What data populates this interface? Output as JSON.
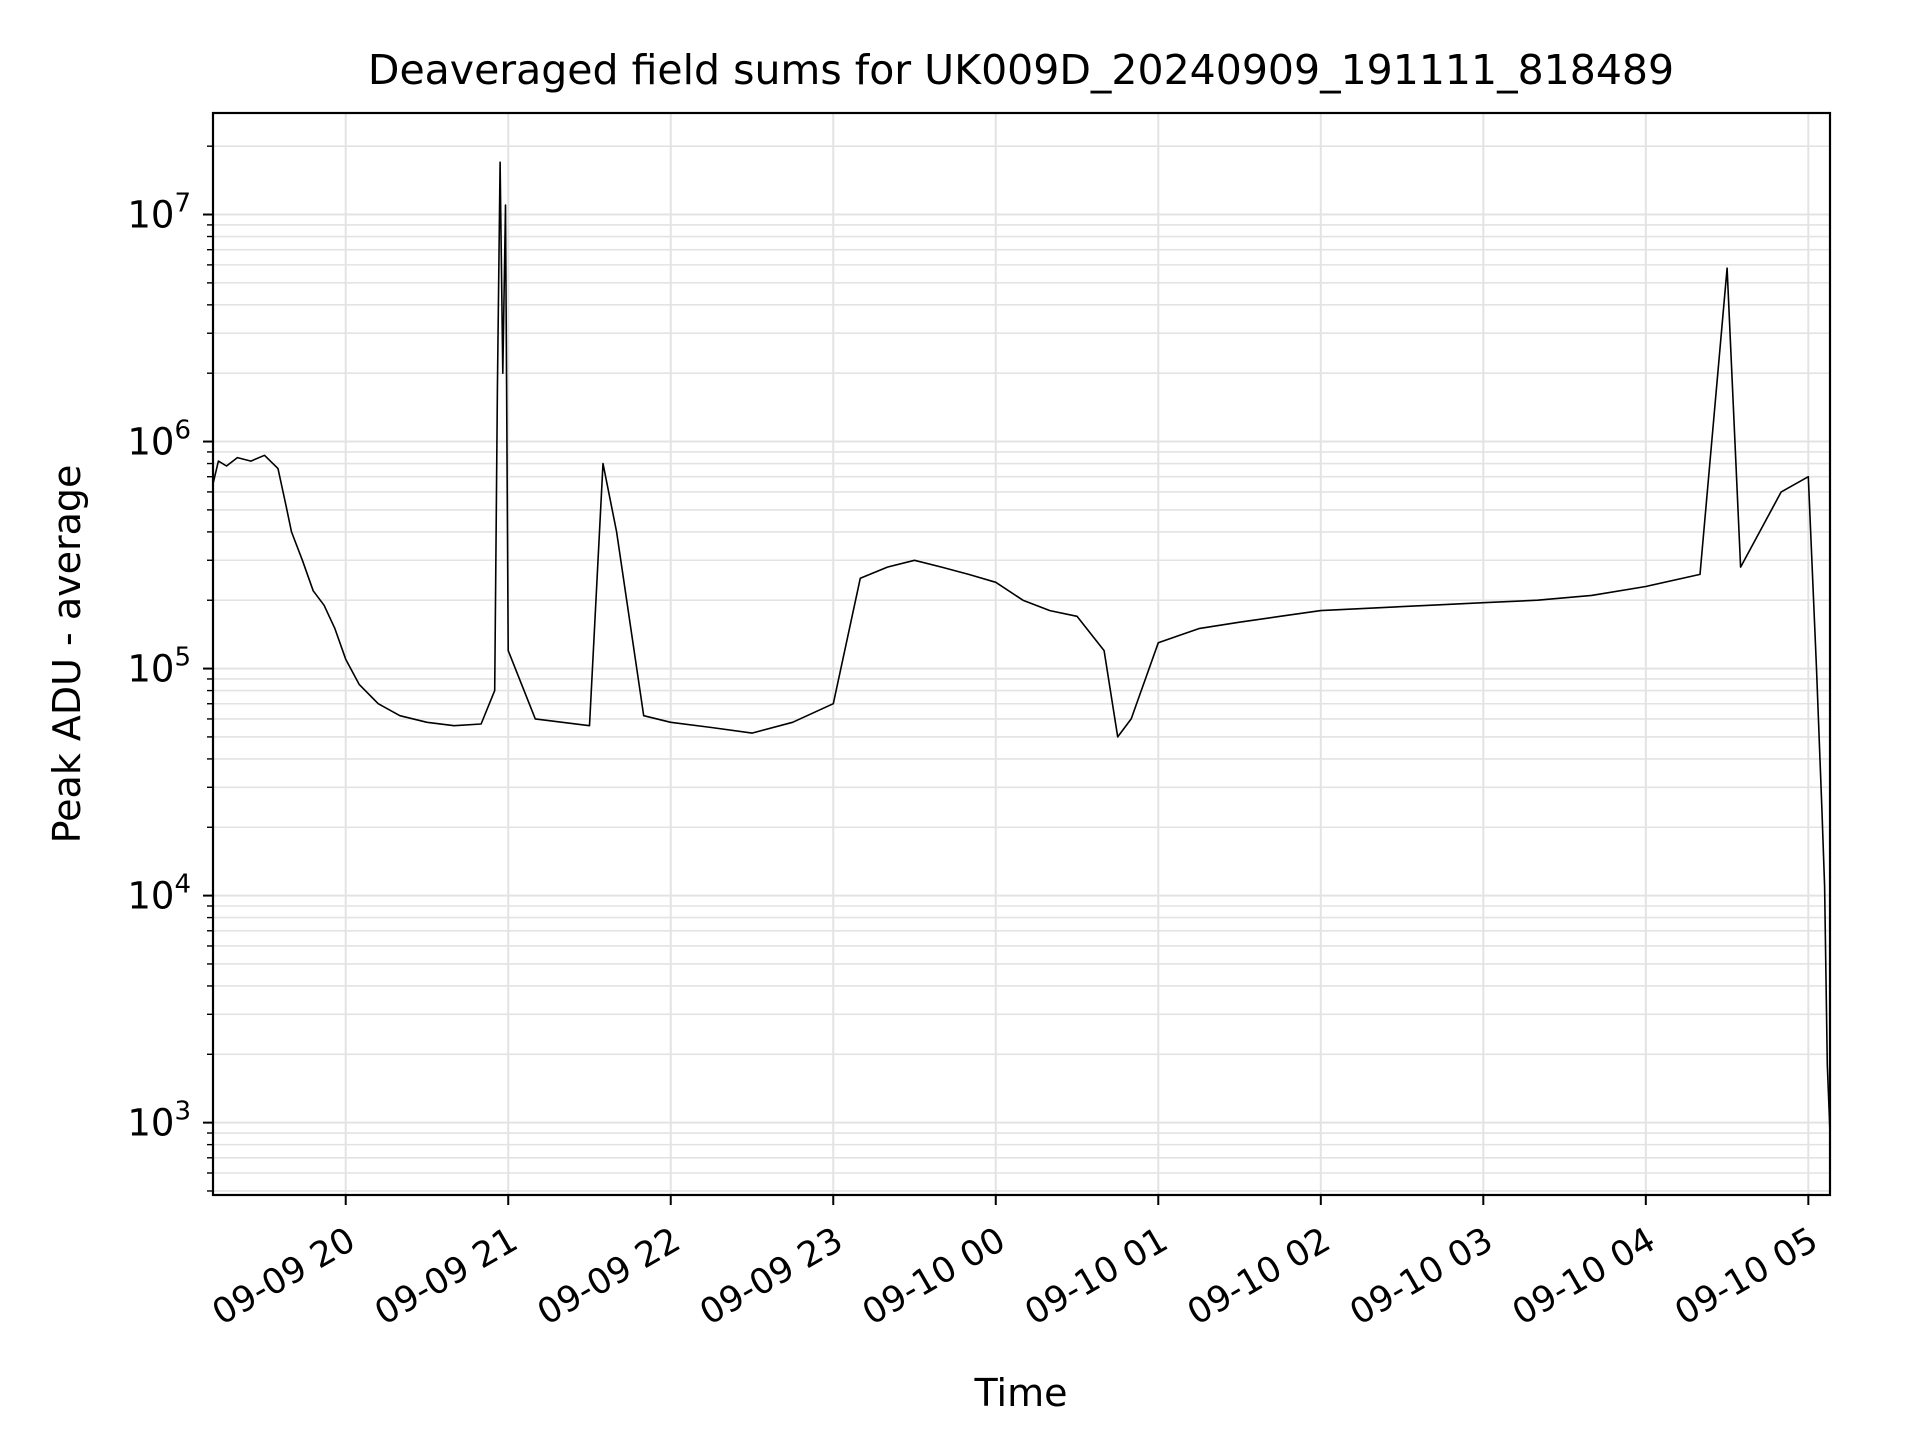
{
  "chart_data": {
    "type": "line",
    "title": "Deaveraged field sums for UK009D_20240909_191111_818489",
    "xlabel": "Time",
    "ylabel": "Peak ADU - average",
    "yscale": "log",
    "grid": true,
    "legend": "none",
    "line_color": "#000000",
    "xlim": [
      "2024-09-09 19:11",
      "2024-09-10 05:08"
    ],
    "ylim": [
      480,
      28000000
    ],
    "x_ticks": [
      {
        "t": "2024-09-09 20:00",
        "label": "09-09 20"
      },
      {
        "t": "2024-09-09 21:00",
        "label": "09-09 21"
      },
      {
        "t": "2024-09-09 22:00",
        "label": "09-09 22"
      },
      {
        "t": "2024-09-09 23:00",
        "label": "09-09 23"
      },
      {
        "t": "2024-09-10 00:00",
        "label": "09-10 00"
      },
      {
        "t": "2024-09-10 01:00",
        "label": "09-10 01"
      },
      {
        "t": "2024-09-10 02:00",
        "label": "09-10 02"
      },
      {
        "t": "2024-09-10 03:00",
        "label": "09-10 03"
      },
      {
        "t": "2024-09-10 04:00",
        "label": "09-10 04"
      },
      {
        "t": "2024-09-10 05:00",
        "label": "09-10 05"
      }
    ],
    "y_ticks": [
      {
        "value": 1000,
        "label": "10",
        "exp": "3"
      },
      {
        "value": 10000,
        "label": "10",
        "exp": "4"
      },
      {
        "value": 100000,
        "label": "10",
        "exp": "5"
      },
      {
        "value": 1000000,
        "label": "10",
        "exp": "6"
      },
      {
        "value": 10000000,
        "label": "10",
        "exp": "7"
      }
    ],
    "series": [
      {
        "points": [
          [
            "2024-09-09 19:11",
            650000
          ],
          [
            "2024-09-09 19:13",
            820000
          ],
          [
            "2024-09-09 19:16",
            780000
          ],
          [
            "2024-09-09 19:20",
            850000
          ],
          [
            "2024-09-09 19:25",
            820000
          ],
          [
            "2024-09-09 19:30",
            870000
          ],
          [
            "2024-09-09 19:35",
            760000
          ],
          [
            "2024-09-09 19:38",
            520000
          ],
          [
            "2024-09-09 19:40",
            400000
          ],
          [
            "2024-09-09 19:44",
            300000
          ],
          [
            "2024-09-09 19:48",
            220000
          ],
          [
            "2024-09-09 19:52",
            190000
          ],
          [
            "2024-09-09 19:56",
            150000
          ],
          [
            "2024-09-09 20:00",
            110000
          ],
          [
            "2024-09-09 20:05",
            85000
          ],
          [
            "2024-09-09 20:12",
            70000
          ],
          [
            "2024-09-09 20:20",
            62000
          ],
          [
            "2024-09-09 20:30",
            58000
          ],
          [
            "2024-09-09 20:40",
            56000
          ],
          [
            "2024-09-09 20:50",
            57000
          ],
          [
            "2024-09-09 20:55",
            80000
          ],
          [
            "2024-09-09 20:56",
            1700000
          ],
          [
            "2024-09-09 20:57",
            17000000
          ],
          [
            "2024-09-09 20:58",
            2000000
          ],
          [
            "2024-09-09 20:59",
            11000000
          ],
          [
            "2024-09-09 21:00",
            120000
          ],
          [
            "2024-09-09 21:10",
            60000
          ],
          [
            "2024-09-09 21:20",
            58000
          ],
          [
            "2024-09-09 21:30",
            56000
          ],
          [
            "2024-09-09 21:35",
            800000
          ],
          [
            "2024-09-09 21:40",
            400000
          ],
          [
            "2024-09-09 21:50",
            62000
          ],
          [
            "2024-09-09 22:00",
            58000
          ],
          [
            "2024-09-09 22:15",
            55000
          ],
          [
            "2024-09-09 22:30",
            52000
          ],
          [
            "2024-09-09 22:45",
            58000
          ],
          [
            "2024-09-09 23:00",
            70000
          ],
          [
            "2024-09-09 23:10",
            250000
          ],
          [
            "2024-09-09 23:20",
            280000
          ],
          [
            "2024-09-09 23:30",
            300000
          ],
          [
            "2024-09-09 23:40",
            280000
          ],
          [
            "2024-09-09 23:50",
            260000
          ],
          [
            "2024-09-10 00:00",
            240000
          ],
          [
            "2024-09-10 00:10",
            200000
          ],
          [
            "2024-09-10 00:20",
            180000
          ],
          [
            "2024-09-10 00:30",
            170000
          ],
          [
            "2024-09-10 00:40",
            120000
          ],
          [
            "2024-09-10 00:45",
            50000
          ],
          [
            "2024-09-10 00:50",
            60000
          ],
          [
            "2024-09-10 01:00",
            130000
          ],
          [
            "2024-09-10 01:15",
            150000
          ],
          [
            "2024-09-10 01:30",
            160000
          ],
          [
            "2024-09-10 01:45",
            170000
          ],
          [
            "2024-09-10 02:00",
            180000
          ],
          [
            "2024-09-10 02:20",
            185000
          ],
          [
            "2024-09-10 02:40",
            190000
          ],
          [
            "2024-09-10 03:00",
            195000
          ],
          [
            "2024-09-10 03:20",
            200000
          ],
          [
            "2024-09-10 03:40",
            210000
          ],
          [
            "2024-09-10 04:00",
            230000
          ],
          [
            "2024-09-10 04:20",
            260000
          ],
          [
            "2024-09-10 04:30",
            5800000
          ],
          [
            "2024-09-10 04:35",
            280000
          ],
          [
            "2024-09-10 04:50",
            600000
          ],
          [
            "2024-09-10 05:00",
            700000
          ],
          [
            "2024-09-10 05:03",
            100000
          ],
          [
            "2024-09-10 05:05",
            24000
          ],
          [
            "2024-09-10 05:06",
            11000
          ],
          [
            "2024-09-10 05:07",
            1800
          ],
          [
            "2024-09-10 05:08",
            900
          ]
        ]
      }
    ]
  }
}
